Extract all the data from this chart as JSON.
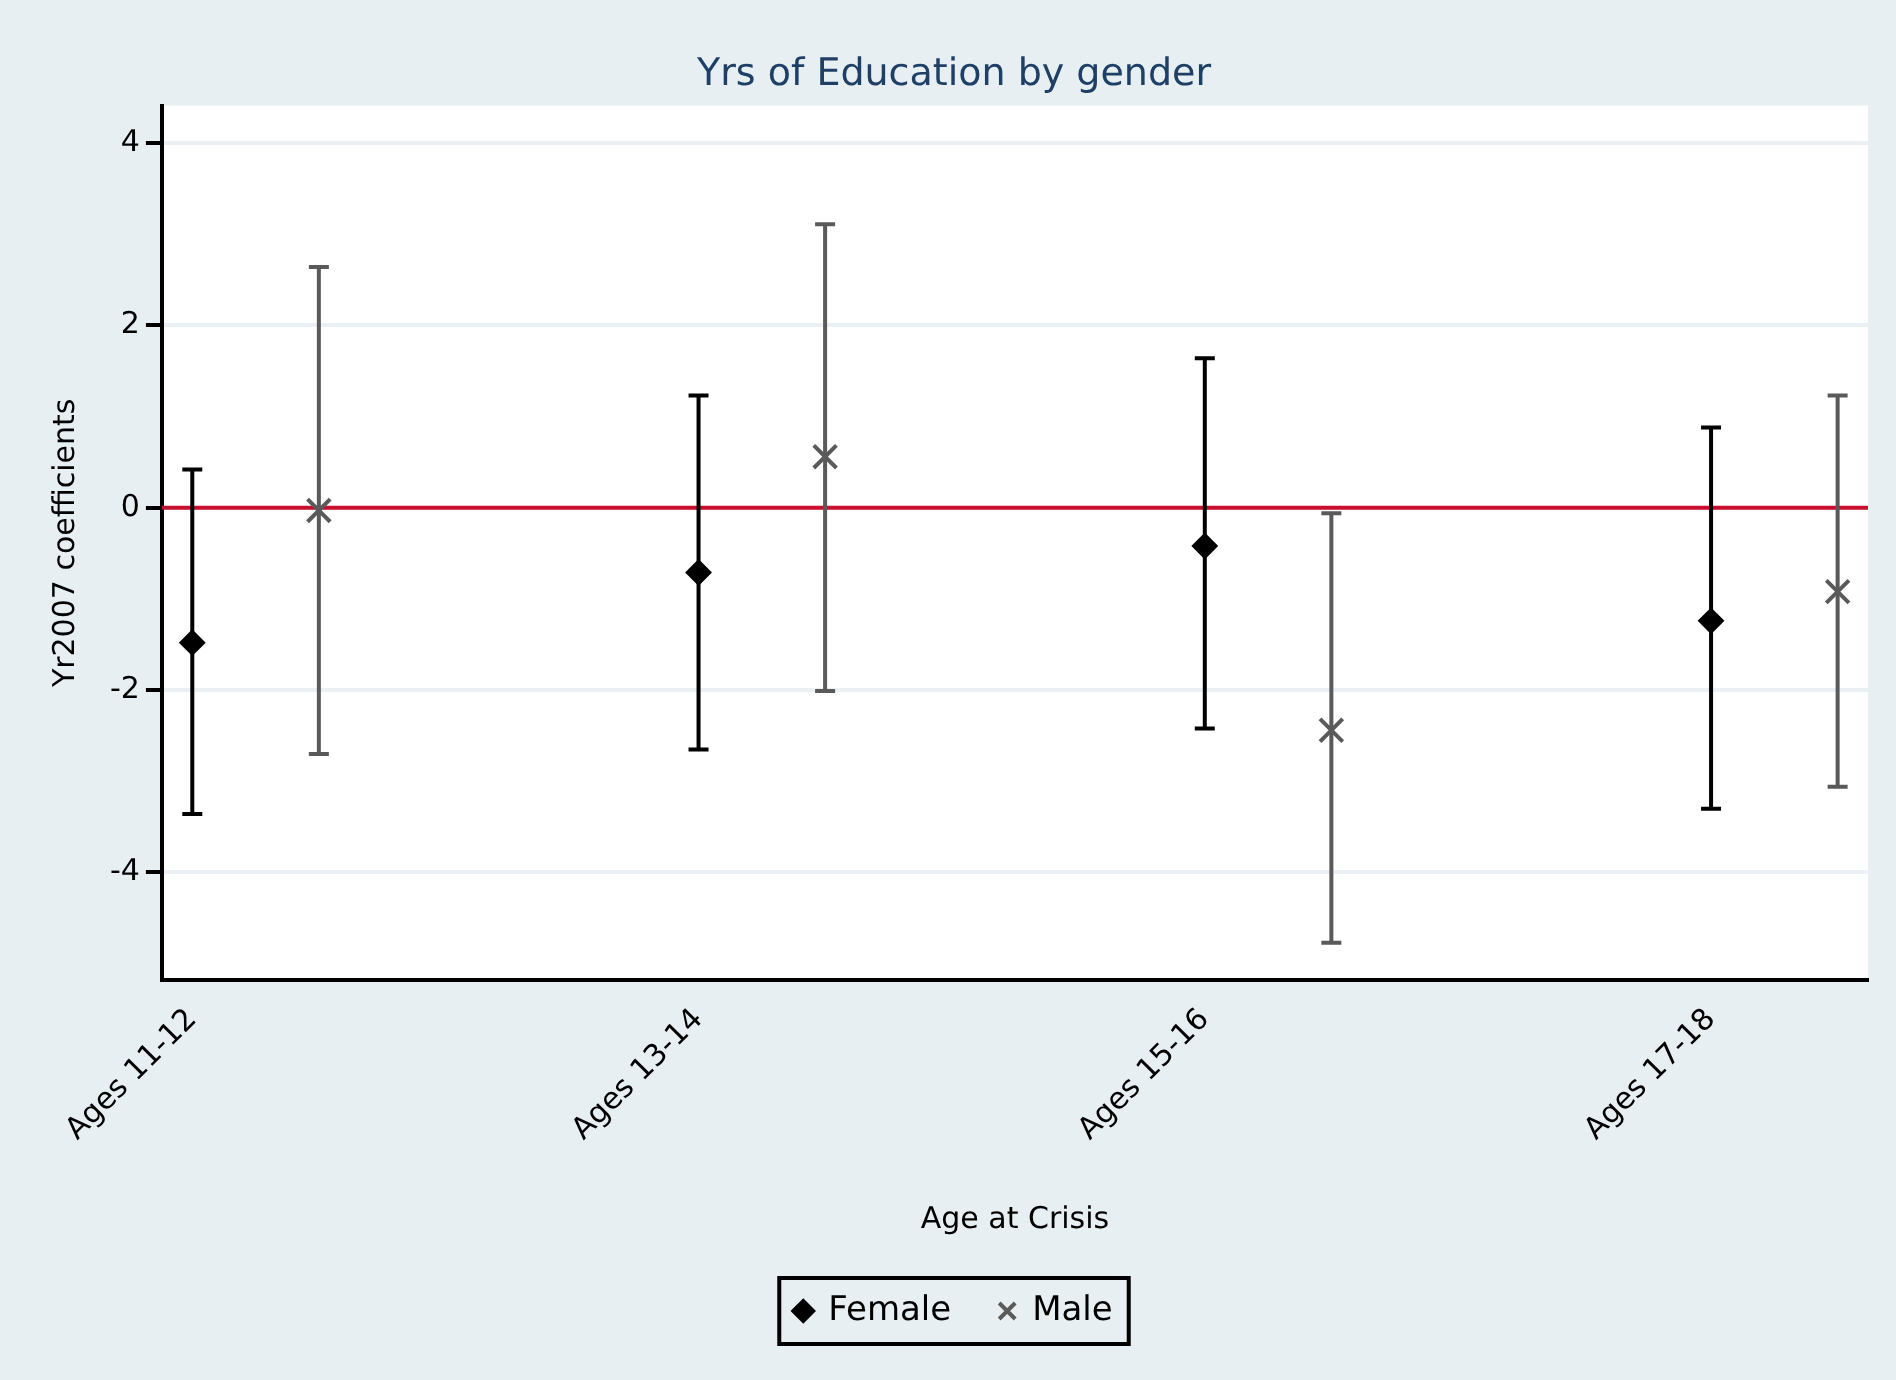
{
  "chart_data": {
    "type": "scatter",
    "title": "Yrs of Education by gender",
    "xlabel": "Age at Crisis",
    "ylabel": "Yr2007 coefficients",
    "categories": [
      "Ages 11-12",
      "Ages 13-14",
      "Ages 15-16",
      "Ages 17-18"
    ],
    "ylim": [
      -5.18,
      4.41
    ],
    "yticks": [
      -4,
      -2,
      0,
      2,
      4
    ],
    "grid": "y",
    "legend": "bottom",
    "ref_lines": [
      {
        "axis": "y",
        "value": 0,
        "color": "#c8102e"
      }
    ],
    "series": [
      {
        "name": "Female",
        "color": "#000000",
        "marker": "diamond",
        "values": [
          -1.48,
          -0.71,
          -0.42,
          -1.24
        ],
        "errors": [
          [
            -3.36,
            0.42
          ],
          [
            -2.65,
            1.23
          ],
          [
            -2.42,
            1.64
          ],
          [
            -3.3,
            0.88
          ]
        ]
      },
      {
        "name": "Male",
        "color": "#5a5a5a",
        "marker": "cross",
        "values": [
          -0.03,
          0.56,
          -2.44,
          -0.92
        ],
        "errors": [
          [
            -2.7,
            2.64
          ],
          [
            -2.01,
            3.11
          ],
          [
            -4.77,
            -0.06
          ],
          [
            -3.06,
            1.23
          ]
        ]
      }
    ]
  }
}
